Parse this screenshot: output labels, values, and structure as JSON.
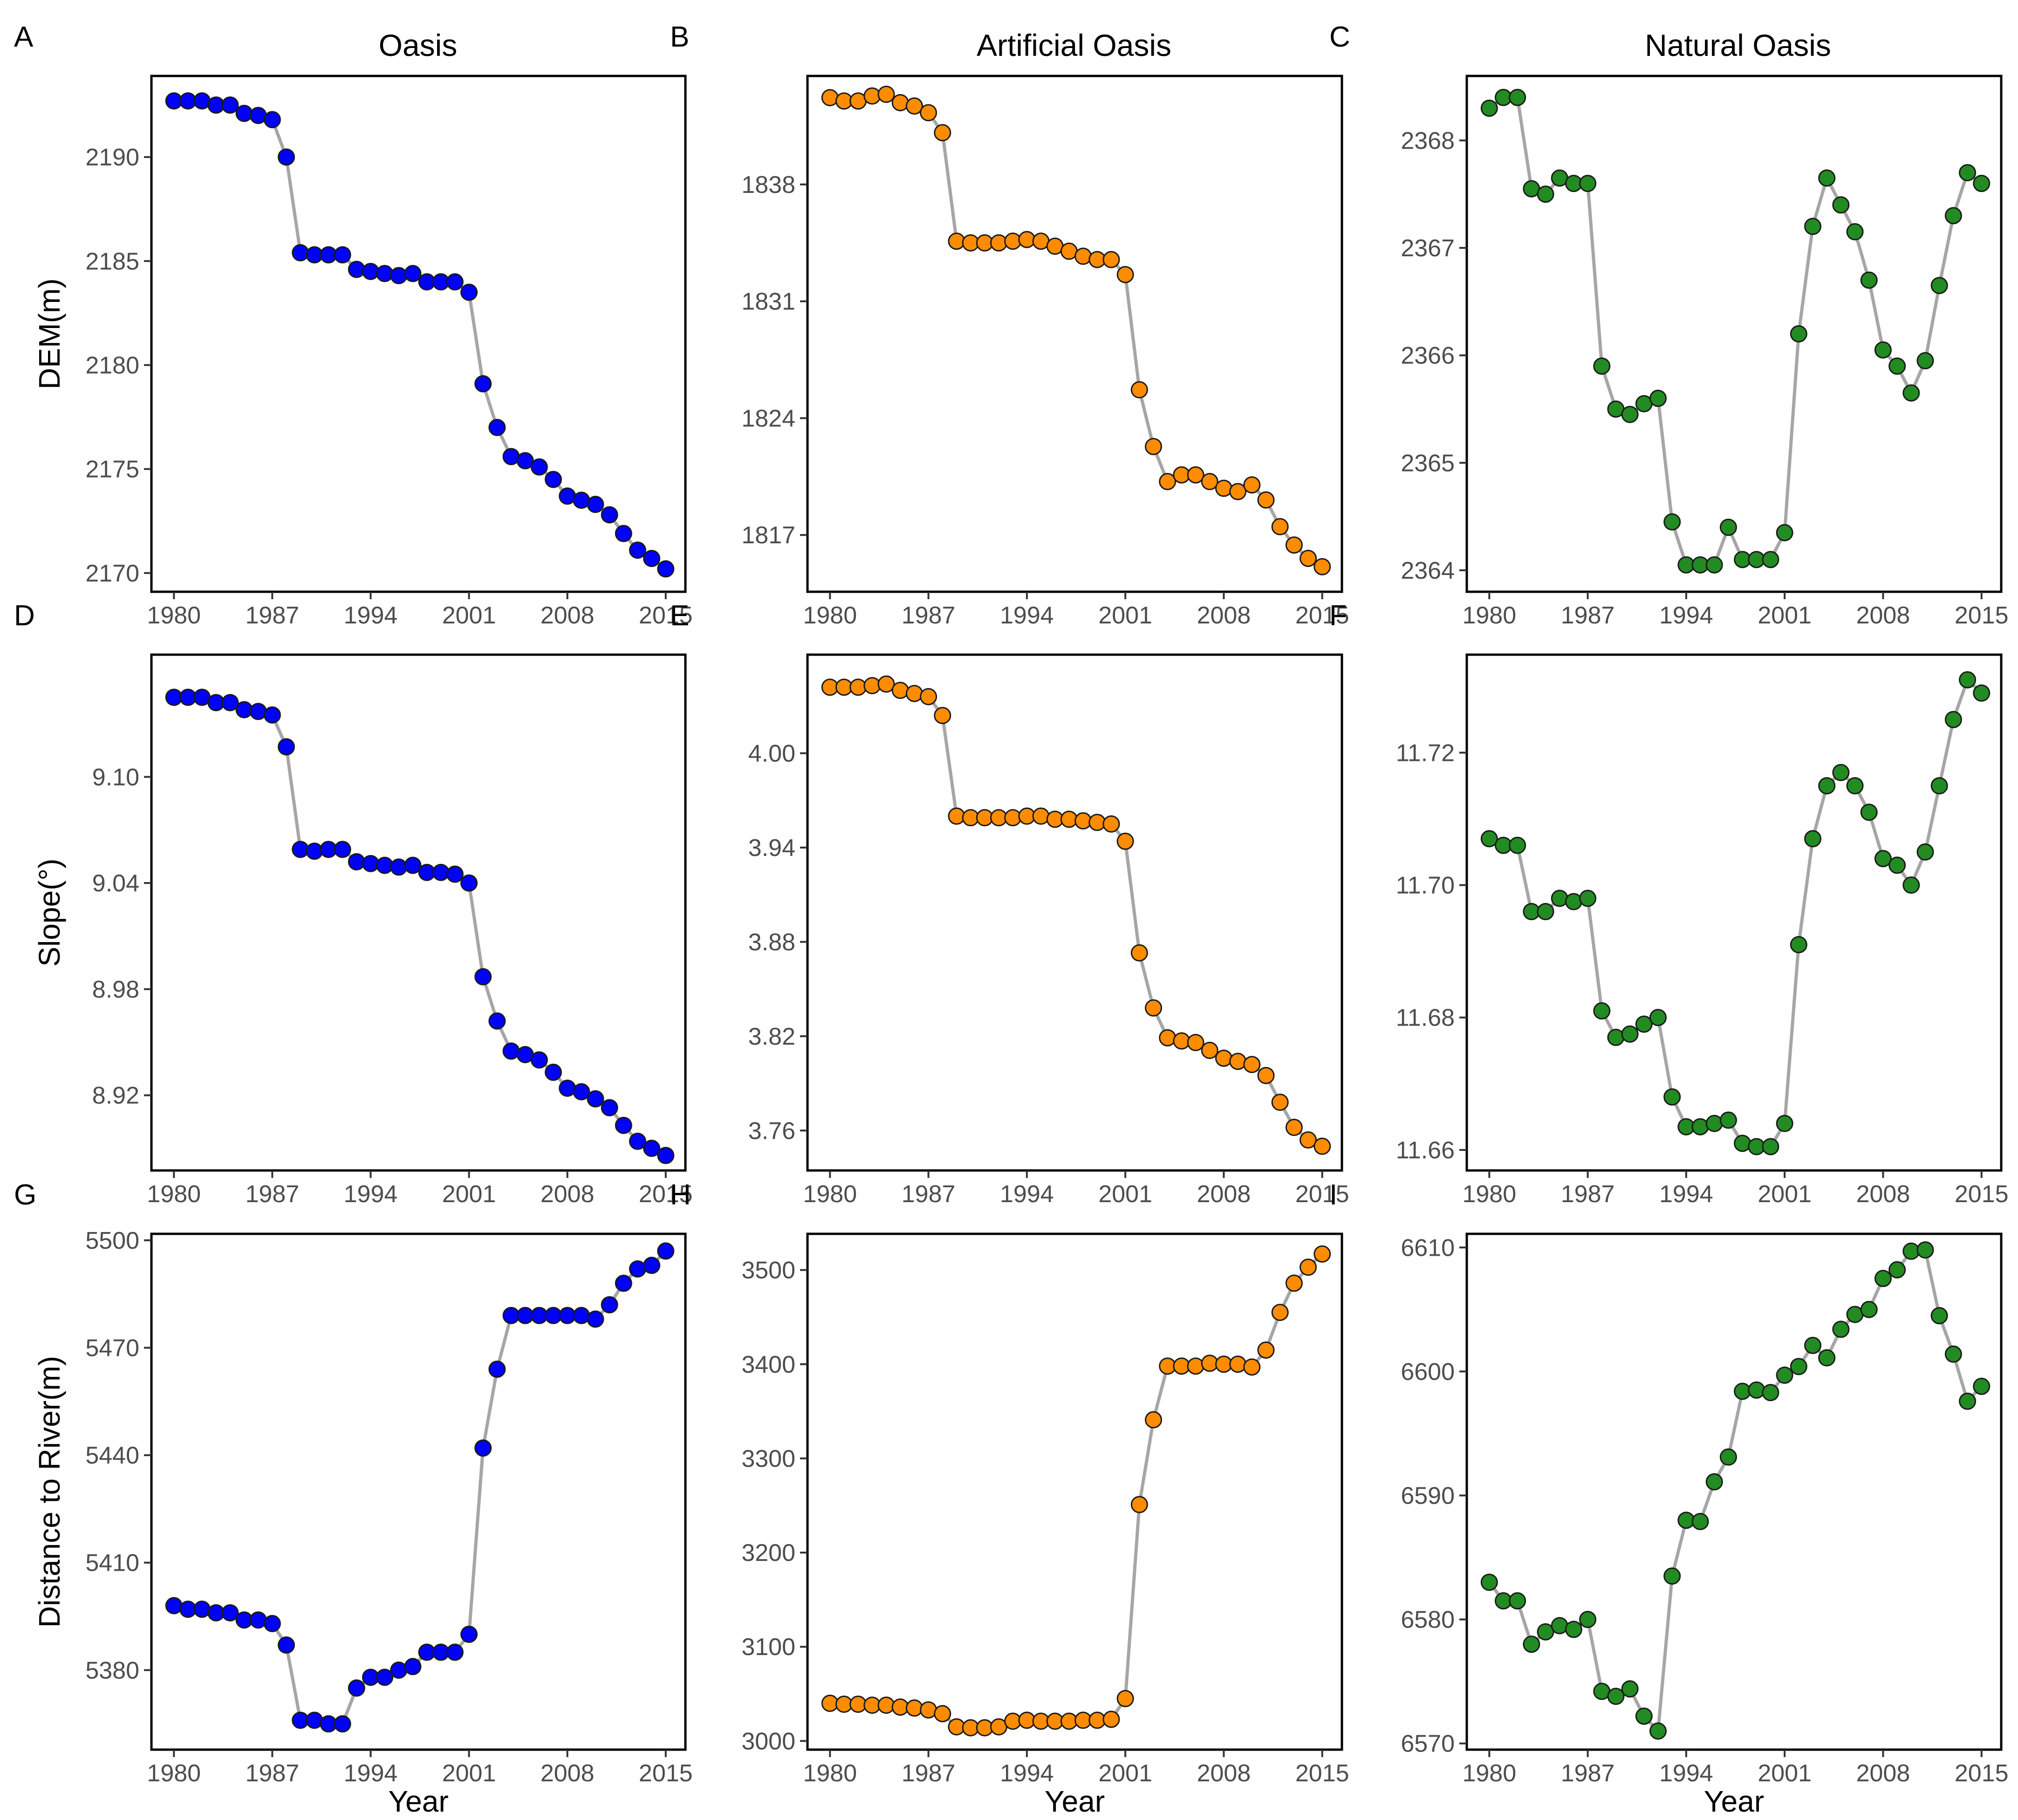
{
  "columns": [
    "Oasis",
    "Artificial Oasis",
    "Natural Oasis"
  ],
  "x_axis_label": "Year",
  "x_ticks": [
    1980,
    1987,
    1994,
    2001,
    2008,
    2015
  ],
  "colors": {
    "oasis": "#0000ff",
    "artificial": "#ff8c00",
    "natural": "#228b22",
    "line": "#a6a6a6"
  },
  "chart_data": [
    {
      "letter": "A",
      "type": "line",
      "column": "Oasis",
      "ylabel": "DEM(m)",
      "color": "#0000ff",
      "yticks": [
        2170,
        2175,
        2180,
        2185,
        2190
      ],
      "ylim": [
        2169.1,
        2193.9
      ],
      "xlabel": "",
      "x": [
        1980,
        1981,
        1982,
        1983,
        1984,
        1985,
        1986,
        1987,
        1988,
        1989,
        1990,
        1991,
        1992,
        1993,
        1994,
        1995,
        1996,
        1997,
        1998,
        1999,
        2000,
        2001,
        2002,
        2003,
        2004,
        2005,
        2006,
        2007,
        2008,
        2009,
        2010,
        2011,
        2012,
        2013,
        2014,
        2015
      ],
      "values": [
        2192.7,
        2192.7,
        2192.7,
        2192.5,
        2192.5,
        2192.1,
        2192.0,
        2191.8,
        2190.0,
        2185.4,
        2185.3,
        2185.3,
        2185.3,
        2184.6,
        2184.5,
        2184.4,
        2184.3,
        2184.4,
        2184.0,
        2184.0,
        2184.0,
        2183.5,
        2179.1,
        2177.0,
        2175.6,
        2175.4,
        2175.1,
        2174.5,
        2173.7,
        2173.5,
        2173.3,
        2172.8,
        2171.9,
        2171.1,
        2170.7,
        2170.2
      ]
    },
    {
      "letter": "B",
      "type": "line",
      "column": "Artificial Oasis",
      "ylabel": "",
      "color": "#ff8c00",
      "yticks": [
        1817,
        1824,
        1831,
        1838
      ],
      "ylim": [
        1813.6,
        1844.5
      ],
      "xlabel": "",
      "x": [
        1980,
        1981,
        1982,
        1983,
        1984,
        1985,
        1986,
        1987,
        1988,
        1989,
        1990,
        1991,
        1992,
        1993,
        1994,
        1995,
        1996,
        1997,
        1998,
        1999,
        2000,
        2001,
        2002,
        2003,
        2004,
        2005,
        2006,
        2007,
        2008,
        2009,
        2010,
        2011,
        2012,
        2013,
        2014,
        2015
      ],
      "values": [
        1843.2,
        1843.0,
        1843.0,
        1843.3,
        1843.4,
        1842.9,
        1842.7,
        1842.3,
        1841.1,
        1834.6,
        1834.5,
        1834.5,
        1834.5,
        1834.6,
        1834.7,
        1834.6,
        1834.3,
        1834.0,
        1833.7,
        1833.5,
        1833.5,
        1832.6,
        1825.7,
        1822.3,
        1820.2,
        1820.6,
        1820.6,
        1820.2,
        1819.8,
        1819.6,
        1820.0,
        1819.1,
        1817.5,
        1816.4,
        1815.6,
        1815.1
      ]
    },
    {
      "letter": "C",
      "type": "line",
      "column": "Natural Oasis",
      "ylabel": "",
      "color": "#228b22",
      "yticks": [
        2364,
        2365,
        2366,
        2367,
        2368
      ],
      "ylim": [
        2363.8,
        2368.6
      ],
      "xlabel": "",
      "x": [
        1980,
        1981,
        1982,
        1983,
        1984,
        1985,
        1986,
        1987,
        1988,
        1989,
        1990,
        1991,
        1992,
        1993,
        1994,
        1995,
        1996,
        1997,
        1998,
        1999,
        2000,
        2001,
        2002,
        2003,
        2004,
        2005,
        2006,
        2007,
        2008,
        2009,
        2010,
        2011,
        2012,
        2013,
        2014,
        2015
      ],
      "values": [
        2368.3,
        2368.4,
        2368.4,
        2367.55,
        2367.5,
        2367.65,
        2367.6,
        2367.6,
        2365.9,
        2365.5,
        2365.45,
        2365.55,
        2365.6,
        2364.45,
        2364.05,
        2364.05,
        2364.05,
        2364.4,
        2364.1,
        2364.1,
        2364.1,
        2364.35,
        2366.2,
        2367.2,
        2367.65,
        2367.4,
        2367.15,
        2366.7,
        2366.05,
        2365.9,
        2365.65,
        2365.95,
        2366.65,
        2367.3,
        2367.7,
        2367.6
      ]
    },
    {
      "letter": "D",
      "type": "line",
      "column": "Oasis",
      "ylabel": "Slope(°)",
      "color": "#0000ff",
      "yticks": [
        8.92,
        8.98,
        9.04,
        9.1
      ],
      "ylim": [
        8.8775,
        9.1691
      ],
      "xlabel": "",
      "x": [
        1980,
        1981,
        1982,
        1983,
        1984,
        1985,
        1986,
        1987,
        1988,
        1989,
        1990,
        1991,
        1992,
        1993,
        1994,
        1995,
        1996,
        1997,
        1998,
        1999,
        2000,
        2001,
        2002,
        2003,
        2004,
        2005,
        2006,
        2007,
        2008,
        2009,
        2010,
        2011,
        2012,
        2013,
        2014,
        2015
      ],
      "values": [
        9.145,
        9.145,
        9.145,
        9.142,
        9.142,
        9.138,
        9.137,
        9.135,
        9.117,
        9.059,
        9.058,
        9.059,
        9.059,
        9.052,
        9.051,
        9.05,
        9.049,
        9.05,
        9.046,
        9.046,
        9.045,
        9.04,
        8.987,
        8.962,
        8.945,
        8.943,
        8.94,
        8.933,
        8.924,
        8.922,
        8.918,
        8.913,
        8.903,
        8.894,
        8.89,
        8.886
      ]
    },
    {
      "letter": "E",
      "type": "line",
      "column": "Artificial Oasis",
      "ylabel": "",
      "color": "#ff8c00",
      "yticks": [
        3.76,
        3.82,
        3.88,
        3.94,
        4.0
      ],
      "ylim": [
        3.7346,
        4.0627
      ],
      "xlabel": "",
      "x": [
        1980,
        1981,
        1982,
        1983,
        1984,
        1985,
        1986,
        1987,
        1988,
        1989,
        1990,
        1991,
        1992,
        1993,
        1994,
        1995,
        1996,
        1997,
        1998,
        1999,
        2000,
        2001,
        2002,
        2003,
        2004,
        2005,
        2006,
        2007,
        2008,
        2009,
        2010,
        2011,
        2012,
        2013,
        2014,
        2015
      ],
      "values": [
        4.042,
        4.042,
        4.042,
        4.043,
        4.044,
        4.04,
        4.038,
        4.036,
        4.024,
        3.96,
        3.959,
        3.959,
        3.959,
        3.959,
        3.96,
        3.96,
        3.958,
        3.958,
        3.957,
        3.956,
        3.955,
        3.944,
        3.873,
        3.838,
        3.819,
        3.817,
        3.816,
        3.811,
        3.806,
        3.804,
        3.802,
        3.795,
        3.778,
        3.762,
        3.754,
        3.75
      ]
    },
    {
      "letter": "F",
      "type": "line",
      "column": "Natural Oasis",
      "ylabel": "",
      "color": "#228b22",
      "yticks": [
        11.66,
        11.68,
        11.7,
        11.72
      ],
      "ylim": [
        11.6569,
        11.7348
      ],
      "xlabel": "",
      "x": [
        1980,
        1981,
        1982,
        1983,
        1984,
        1985,
        1986,
        1987,
        1988,
        1989,
        1990,
        1991,
        1992,
        1993,
        1994,
        1995,
        1996,
        1997,
        1998,
        1999,
        2000,
        2001,
        2002,
        2003,
        2004,
        2005,
        2006,
        2007,
        2008,
        2009,
        2010,
        2011,
        2012,
        2013,
        2014,
        2015
      ],
      "values": [
        11.707,
        11.706,
        11.706,
        11.696,
        11.696,
        11.698,
        11.6975,
        11.698,
        11.681,
        11.677,
        11.6775,
        11.679,
        11.68,
        11.668,
        11.6635,
        11.6635,
        11.664,
        11.6645,
        11.661,
        11.6605,
        11.6605,
        11.664,
        11.691,
        11.707,
        11.715,
        11.717,
        11.715,
        11.711,
        11.704,
        11.703,
        11.7,
        11.705,
        11.715,
        11.725,
        11.731,
        11.729
      ]
    },
    {
      "letter": "G",
      "type": "line",
      "column": "Oasis",
      "ylabel": "Distance to River(m)",
      "color": "#0000ff",
      "yticks": [
        5380,
        5410,
        5440,
        5470,
        5500
      ],
      "ylim": [
        5357.8,
        5501.8
      ],
      "xlabel": "Year",
      "x": [
        1980,
        1981,
        1982,
        1983,
        1984,
        1985,
        1986,
        1987,
        1988,
        1989,
        1990,
        1991,
        1992,
        1993,
        1994,
        1995,
        1996,
        1997,
        1998,
        1999,
        2000,
        2001,
        2002,
        2003,
        2004,
        2005,
        2006,
        2007,
        2008,
        2009,
        2010,
        2011,
        2012,
        2013,
        2014,
        2015
      ],
      "values": [
        5398,
        5397,
        5397,
        5396,
        5396,
        5394,
        5394,
        5393,
        5387,
        5366,
        5366,
        5365,
        5365,
        5375,
        5378,
        5378,
        5380,
        5381,
        5385,
        5385,
        5385,
        5390,
        5442,
        5464,
        5479,
        5479,
        5479,
        5479,
        5479,
        5479,
        5478,
        5482,
        5488,
        5492,
        5493,
        5497
      ]
    },
    {
      "letter": "H",
      "type": "line",
      "column": "Artificial Oasis",
      "ylabel": "",
      "color": "#ff8c00",
      "yticks": [
        3000,
        3100,
        3200,
        3300,
        3400,
        3500
      ],
      "ylim": [
        2990.8,
        3538.4
      ],
      "xlabel": "Year",
      "x": [
        1980,
        1981,
        1982,
        1983,
        1984,
        1985,
        1986,
        1987,
        1988,
        1989,
        1990,
        1991,
        1992,
        1993,
        1994,
        1995,
        1996,
        1997,
        1998,
        1999,
        2000,
        2001,
        2002,
        2003,
        2004,
        2005,
        2006,
        2007,
        2008,
        2009,
        2010,
        2011,
        2012,
        2013,
        2014,
        2015
      ],
      "values": [
        3040,
        3039,
        3039,
        3038,
        3038,
        3036,
        3035,
        3033,
        3029,
        3015,
        3014,
        3014,
        3015,
        3021,
        3022,
        3021,
        3021,
        3021,
        3022,
        3022,
        3023,
        3045,
        3251,
        3341,
        3398,
        3398,
        3398,
        3401,
        3400,
        3400,
        3397,
        3415,
        3455,
        3486,
        3503,
        3517
      ]
    },
    {
      "letter": "I",
      "type": "line",
      "column": "Natural Oasis",
      "ylabel": "",
      "color": "#228b22",
      "yticks": [
        6570,
        6580,
        6590,
        6600,
        6610
      ],
      "ylim": [
        6569.5,
        6611.1
      ],
      "xlabel": "Year",
      "x": [
        1980,
        1981,
        1982,
        1983,
        1984,
        1985,
        1986,
        1987,
        1988,
        1989,
        1990,
        1991,
        1992,
        1993,
        1994,
        1995,
        1996,
        1997,
        1998,
        1999,
        2000,
        2001,
        2002,
        2003,
        2004,
        2005,
        2006,
        2007,
        2008,
        2009,
        2010,
        2011,
        2012,
        2013,
        2014,
        2015
      ],
      "values": [
        6583,
        6581.5,
        6581.5,
        6578,
        6579,
        6579.5,
        6579.2,
        6580,
        6574.2,
        6573.8,
        6574.4,
        6572.2,
        6571,
        6583.5,
        6588,
        6587.9,
        6591.1,
        6593.1,
        6598.4,
        6598.5,
        6598.3,
        6599.7,
        6600.4,
        6602.1,
        6601.1,
        6603.4,
        6604.6,
        6605,
        6607.5,
        6608.2,
        6609.7,
        6609.8,
        6604.5,
        6601.4,
        6597.6,
        6598.8
      ]
    }
  ]
}
